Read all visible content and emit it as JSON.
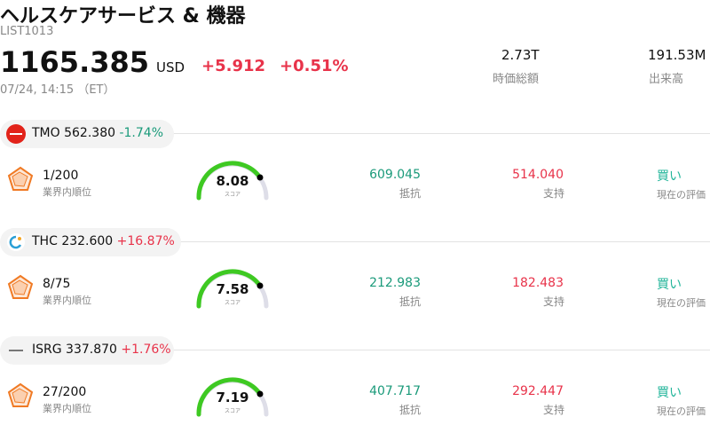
{
  "header": {
    "title": "ヘルスケアサービス & 機器",
    "code": "LIST1013",
    "price": "1165.385",
    "currency": "USD",
    "change": "+5.912",
    "change_pct": "+0.51%",
    "time": "07/24, 14:15 （ET）",
    "stats": [
      {
        "value": "2.73T",
        "label": "時価総額"
      },
      {
        "value": "191.53M",
        "label": "出来高"
      }
    ]
  },
  "rows": [
    {
      "ticker": "TMO",
      "price": "562.380",
      "change_pct": "-1.74%",
      "rank": "1/200",
      "rank_label": "業界内順位",
      "score": "8.08",
      "score_label": "スコア",
      "resistance": "609.045",
      "resistance_label": "抵抗",
      "support": "514.040",
      "support_label": "支持",
      "rating": "買い",
      "rating_label": "現在の評価"
    },
    {
      "ticker": "THC",
      "price": "232.600",
      "change_pct": "+16.87%",
      "rank": "8/75",
      "rank_label": "業界内順位",
      "score": "7.58",
      "score_label": "スコア",
      "resistance": "212.983",
      "resistance_label": "抵抗",
      "support": "182.483",
      "support_label": "支持",
      "rating": "買い",
      "rating_label": "現在の評価"
    },
    {
      "ticker": "ISRG",
      "price": "337.870",
      "change_pct": "+1.76%",
      "rank": "27/200",
      "rank_label": "業界内順位",
      "score": "7.19",
      "score_label": "スコア",
      "resistance": "407.717",
      "resistance_label": "抵抗",
      "support": "292.447",
      "support_label": "支持",
      "rating": "買い",
      "rating_label": "現在の評価"
    }
  ]
}
